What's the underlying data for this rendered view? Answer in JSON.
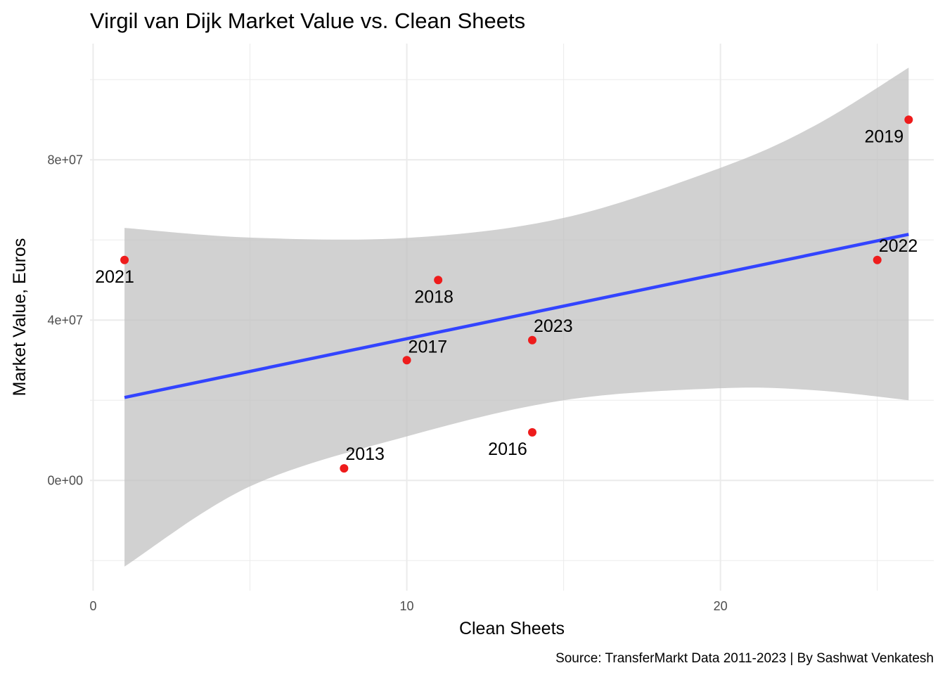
{
  "chart_data": {
    "type": "scatter",
    "title": "Virgil van Dijk Market Value vs. Clean Sheets",
    "xlabel": "Clean Sheets",
    "ylabel": "Market Value, Euros",
    "caption": "Source: TransferMarkt Data 2011-2023 | By Sashwat Venkatesh",
    "xlim": [
      -0.1,
      26.8
    ],
    "ylim": [
      -27500000,
      109000000
    ],
    "x_ticks": [
      0,
      10,
      20
    ],
    "x_tick_labels": [
      "0",
      "10",
      "20"
    ],
    "y_ticks": [
      0,
      40000000,
      80000000
    ],
    "y_tick_labels": [
      "0e+00",
      "4e+07",
      "8e+07"
    ],
    "grid": true,
    "points": [
      {
        "label": "2021",
        "x": 1,
        "y": 55000000
      },
      {
        "label": "2013",
        "x": 8,
        "y": 3000000
      },
      {
        "label": "2017",
        "x": 10,
        "y": 30000000
      },
      {
        "label": "2018",
        "x": 11,
        "y": 50000000
      },
      {
        "label": "2016",
        "x": 14,
        "y": 12000000
      },
      {
        "label": "2023",
        "x": 14,
        "y": 35000000
      },
      {
        "label": "2022",
        "x": 25,
        "y": 55000000
      },
      {
        "label": "2019",
        "x": 26,
        "y": 90000000
      }
    ],
    "trend_line": {
      "x": [
        1,
        26
      ],
      "y": [
        20700000,
        61400000
      ]
    },
    "confidence_band": {
      "x": [
        1,
        5,
        10,
        15,
        20,
        23,
        26
      ],
      "upper": [
        63000000,
        60600000,
        60500000,
        65500000,
        78000000,
        88500000,
        103000000
      ],
      "lower": [
        -21500000,
        -1500000,
        11000000,
        20000000,
        23000000,
        22500000,
        20000000
      ]
    },
    "colors": {
      "point": "#ee1c1c",
      "trend_line": "#3344ff",
      "band": "#bfbfbf",
      "grid": "#ebebeb"
    }
  }
}
